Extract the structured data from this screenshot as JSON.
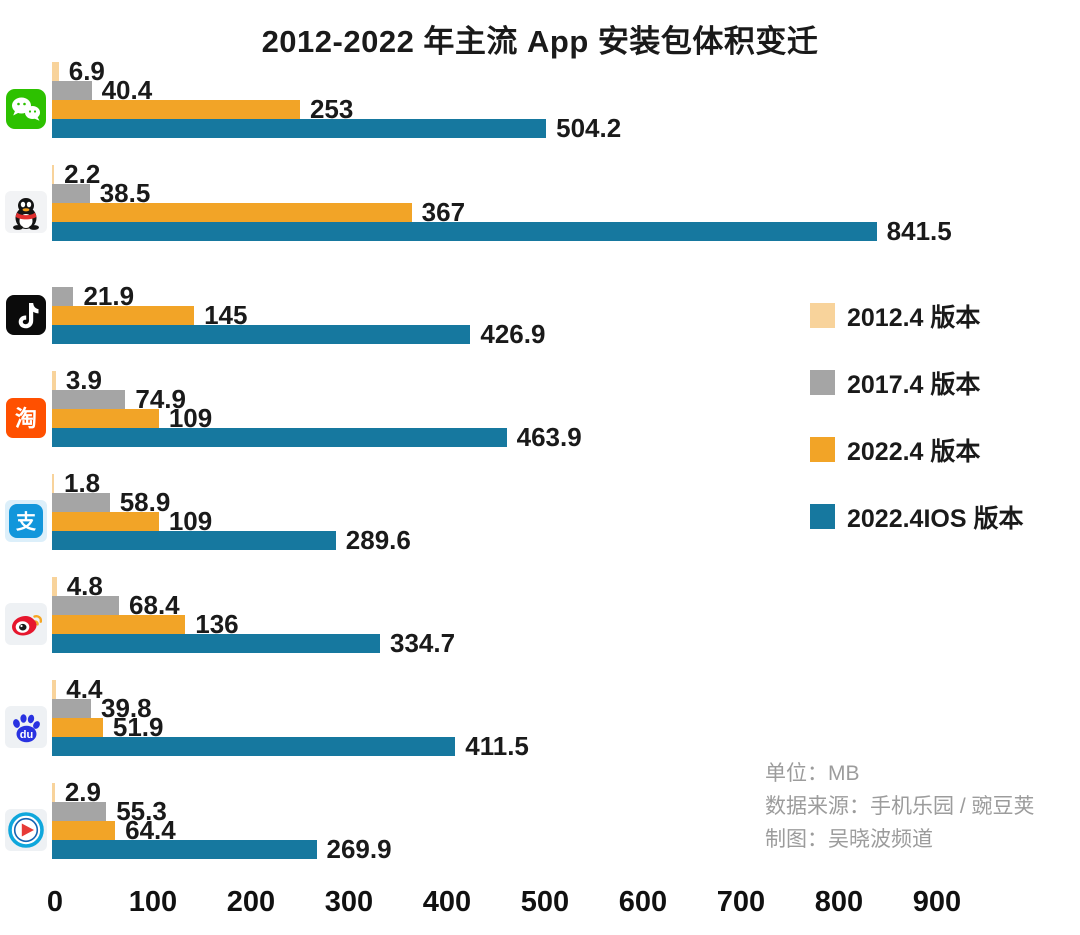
{
  "chart_data": {
    "type": "bar",
    "orientation": "horizontal",
    "title": "2012-2022 年主流 App 安装包体积变迁",
    "unit": "MB",
    "xlim": [
      0,
      900
    ],
    "x_ticks": [
      0,
      100,
      200,
      300,
      400,
      500,
      600,
      700,
      800,
      900
    ],
    "grid": false,
    "legend_position": "right",
    "series": [
      {
        "id": "v2012",
        "label": "2012.4 版本",
        "color": "#F8D39B"
      },
      {
        "id": "v2017",
        "label": "2017.4 版本",
        "color": "#A5A5A5"
      },
      {
        "id": "v2022",
        "label": "2022.4 版本",
        "color": "#F2A427"
      },
      {
        "id": "v2022ios",
        "label": "2022.4IOS 版本",
        "color": "#16789F"
      }
    ],
    "apps": [
      {
        "id": "wechat",
        "icon": "wechat-icon",
        "values": [
          6.9,
          40.4,
          253,
          504.2
        ]
      },
      {
        "id": "qq",
        "icon": "qq-icon",
        "values": [
          2.2,
          38.5,
          367,
          841.5
        ]
      },
      {
        "id": "douyin",
        "icon": "douyin-icon",
        "values": [
          null,
          21.9,
          145,
          426.9
        ]
      },
      {
        "id": "taobao",
        "icon": "taobao-icon",
        "values": [
          3.9,
          74.9,
          109,
          463.9
        ]
      },
      {
        "id": "alipay",
        "icon": "alipay-icon",
        "values": [
          1.8,
          58.9,
          109,
          289.6
        ]
      },
      {
        "id": "weibo",
        "icon": "weibo-icon",
        "values": [
          4.8,
          68.4,
          136,
          334.7
        ]
      },
      {
        "id": "baidu",
        "icon": "baidu-icon",
        "values": [
          4.4,
          39.8,
          51.9,
          411.5
        ]
      },
      {
        "id": "youku",
        "icon": "youku-icon",
        "values": [
          2.9,
          55.3,
          64.4,
          269.9
        ]
      }
    ]
  },
  "footer": {
    "unit_label": "单位：MB",
    "source_label": "数据来源：手机乐园 / 豌豆荚",
    "credit_label": "制图：吴晓波频道"
  }
}
